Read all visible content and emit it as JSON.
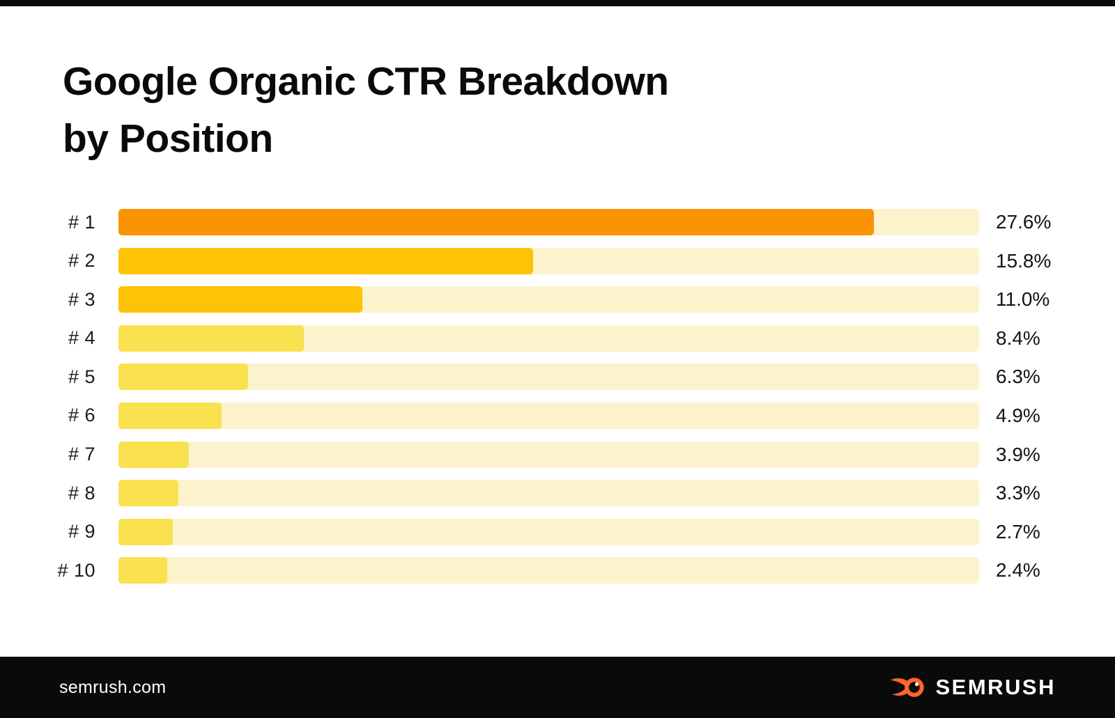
{
  "page": {
    "background": "#FFFFFF",
    "top_bar_color": "#0A0A0A"
  },
  "title": {
    "line1": "Google Organic CTR Breakdown",
    "line2": "by Position",
    "color": "#0A0A0A"
  },
  "chart_data": {
    "type": "bar",
    "orientation": "horizontal",
    "title": "Google Organic CTR Breakdown by Position",
    "categories": [
      "# 1",
      "# 2",
      "# 3",
      "# 4",
      "# 5",
      "# 6",
      "# 7",
      "# 8",
      "# 9",
      "# 10"
    ],
    "values": [
      27.6,
      15.8,
      11.0,
      8.4,
      6.3,
      4.9,
      3.9,
      3.3,
      2.7,
      2.4
    ],
    "unit": "%",
    "grid": false,
    "legend": false,
    "value_label_position": "right-of-track",
    "track_color": "#FCF3CD",
    "bars": [
      {
        "label": "# 1",
        "value": 27.6,
        "display": "27.6%",
        "color": "#FA9405",
        "fill_pct": 87.8
      },
      {
        "label": "# 2",
        "value": 15.8,
        "display": "15.8%",
        "color": "#FCC307",
        "fill_pct": 48.2
      },
      {
        "label": "# 3",
        "value": 11.0,
        "display": "11.0%",
        "color": "#FCC307",
        "fill_pct": 28.3
      },
      {
        "label": "# 4",
        "value": 8.4,
        "display": "8.4%",
        "color": "#FAE150",
        "fill_pct": 21.5
      },
      {
        "label": "# 5",
        "value": 6.3,
        "display": "6.3%",
        "color": "#FAE150",
        "fill_pct": 15.1
      },
      {
        "label": "# 6",
        "value": 4.9,
        "display": "4.9%",
        "color": "#FAE150",
        "fill_pct": 12.0
      },
      {
        "label": "# 7",
        "value": 3.9,
        "display": "3.9%",
        "color": "#FAE150",
        "fill_pct": 8.2
      },
      {
        "label": "# 8",
        "value": 3.3,
        "display": "3.3%",
        "color": "#FAE150",
        "fill_pct": 7.0
      },
      {
        "label": "# 9",
        "value": 2.7,
        "display": "2.7%",
        "color": "#FAE150",
        "fill_pct": 6.3
      },
      {
        "label": "# 10",
        "value": 2.4,
        "display": "2.4%",
        "color": "#FAE150",
        "fill_pct": 5.7
      }
    ]
  },
  "footer": {
    "website": "semrush.com",
    "brand": "SEMRUSH",
    "background": "#0A0A0A",
    "text_color": "#FFFFFF",
    "flame_color": "#FF642D"
  }
}
